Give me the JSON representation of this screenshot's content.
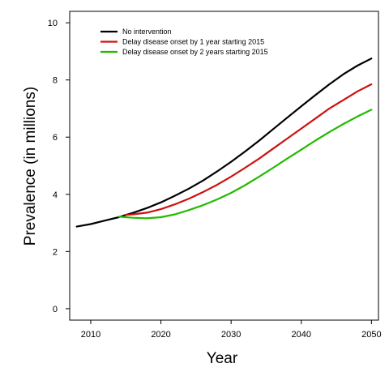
{
  "chart_data": {
    "type": "line",
    "title": "",
    "xlabel": "Year",
    "ylabel": "Prevalence (in millions)",
    "xlim": [
      2007,
      2051
    ],
    "ylim": [
      -0.4,
      10.4
    ],
    "xticks": [
      2010,
      2020,
      2030,
      2040,
      2050
    ],
    "yticks": [
      0,
      2,
      4,
      6,
      8,
      10
    ],
    "grid": false,
    "legend_position": "top-left",
    "series": [
      {
        "name": "No intervention",
        "color": "#000000",
        "x": [
          2008,
          2010,
          2012,
          2014,
          2015,
          2016,
          2018,
          2020,
          2022,
          2024,
          2026,
          2028,
          2030,
          2032,
          2034,
          2036,
          2038,
          2040,
          2042,
          2044,
          2046,
          2048,
          2050
        ],
        "y": [
          2.87,
          2.96,
          3.08,
          3.2,
          3.28,
          3.35,
          3.52,
          3.72,
          3.95,
          4.2,
          4.48,
          4.8,
          5.14,
          5.5,
          5.88,
          6.28,
          6.68,
          7.08,
          7.47,
          7.85,
          8.2,
          8.5,
          8.75
        ]
      },
      {
        "name": "Delay disease onset by 1 year starting 2015",
        "color": "#cc1111",
        "x": [
          2015,
          2016,
          2018,
          2020,
          2022,
          2024,
          2026,
          2028,
          2030,
          2032,
          2034,
          2036,
          2038,
          2040,
          2042,
          2044,
          2046,
          2048,
          2050
        ],
        "y": [
          3.28,
          3.3,
          3.36,
          3.48,
          3.65,
          3.85,
          4.08,
          4.33,
          4.62,
          4.93,
          5.25,
          5.6,
          5.95,
          6.3,
          6.65,
          7.0,
          7.3,
          7.6,
          7.85
        ]
      },
      {
        "name": "Delay disease onset by 2 years starting 2015",
        "color": "#22bb00",
        "x": [
          2014,
          2015,
          2016,
          2018,
          2020,
          2022,
          2024,
          2026,
          2028,
          2030,
          2032,
          2034,
          2036,
          2038,
          2040,
          2042,
          2044,
          2046,
          2048,
          2050
        ],
        "y": [
          3.22,
          3.2,
          3.18,
          3.16,
          3.2,
          3.3,
          3.45,
          3.62,
          3.82,
          4.05,
          4.32,
          4.62,
          4.93,
          5.25,
          5.56,
          5.88,
          6.18,
          6.46,
          6.72,
          6.96
        ]
      }
    ]
  }
}
